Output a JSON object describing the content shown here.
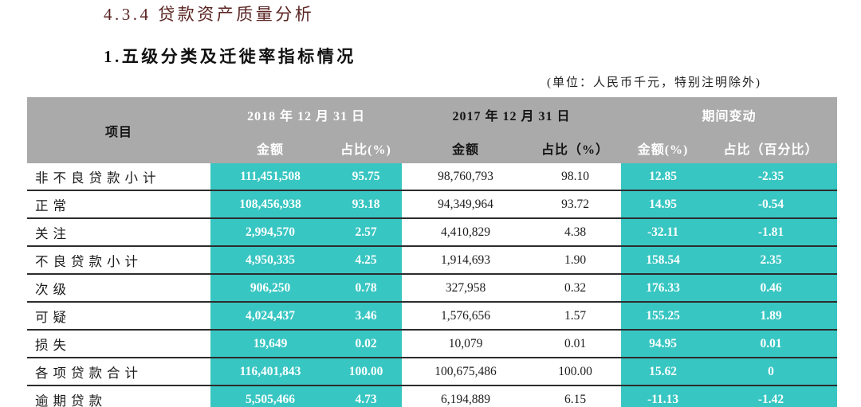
{
  "page": {
    "section_title": "4.3.4 贷款资产质量分析",
    "subsection_title": "1.五级分类及迁徙率指标情况",
    "unit_note": "(单位：人民币千元，特别注明除外)"
  },
  "colors": {
    "accent_teal": "#38C6C2",
    "header_gray": "#AAAAAA",
    "title_maroon": "#5A2422",
    "row_line": "#2C2C2C"
  },
  "table": {
    "header": {
      "item_label": "项目",
      "group_2018": "2018 年 12 月 31 日",
      "group_2017": "2017 年 12 月 31 日",
      "group_change": "期间变动",
      "sub_2018_amount": "金额",
      "sub_2018_pct": "占比(%)",
      "sub_2017_amount": "金额",
      "sub_2017_pct": "占比（%）",
      "sub_change_amount": "金额(%)",
      "sub_change_pct": "占比（百分比）"
    },
    "rows": [
      {
        "label": "非不良贷款小计",
        "amount_2018": "111,451,508",
        "pct_2018": "95.75",
        "amount_2017": "98,760,793",
        "pct_2017": "98.10",
        "change_amount": "12.85",
        "change_pct": "-2.35"
      },
      {
        "label": "正常",
        "amount_2018": "108,456,938",
        "pct_2018": "93.18",
        "amount_2017": "94,349,964",
        "pct_2017": "93.72",
        "change_amount": "14.95",
        "change_pct": "-0.54"
      },
      {
        "label": "关注",
        "amount_2018": "2,994,570",
        "pct_2018": "2.57",
        "amount_2017": "4,410,829",
        "pct_2017": "4.38",
        "change_amount": "-32.11",
        "change_pct": "-1.81"
      },
      {
        "label": "不良贷款小计",
        "amount_2018": "4,950,335",
        "pct_2018": "4.25",
        "amount_2017": "1,914,693",
        "pct_2017": "1.90",
        "change_amount": "158.54",
        "change_pct": "2.35"
      },
      {
        "label": "次级",
        "amount_2018": "906,250",
        "pct_2018": "0.78",
        "amount_2017": "327,958",
        "pct_2017": "0.32",
        "change_amount": "176.33",
        "change_pct": "0.46"
      },
      {
        "label": "可疑",
        "amount_2018": "4,024,437",
        "pct_2018": "3.46",
        "amount_2017": "1,576,656",
        "pct_2017": "1.57",
        "change_amount": "155.25",
        "change_pct": "1.89"
      },
      {
        "label": "损失",
        "amount_2018": "19,649",
        "pct_2018": "0.02",
        "amount_2017": "10,079",
        "pct_2017": "0.01",
        "change_amount": "94.95",
        "change_pct": "0.01"
      },
      {
        "label": "各项贷款合计",
        "amount_2018": "116,401,843",
        "pct_2018": "100.00",
        "amount_2017": "100,675,486",
        "pct_2017": "100.00",
        "change_amount": "15.62",
        "change_pct": "0"
      },
      {
        "label": "逾期贷款",
        "amount_2018": "5,505,466",
        "pct_2018": "4.73",
        "amount_2017": "6,194,889",
        "pct_2017": "6.15",
        "change_amount": "-11.13",
        "change_pct": "-1.42"
      }
    ]
  }
}
